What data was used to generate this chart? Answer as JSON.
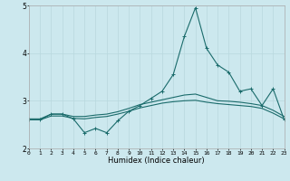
{
  "xlabel": "Humidex (Indice chaleur)",
  "xlim": [
    0,
    23
  ],
  "ylim": [
    2,
    5
  ],
  "yticks": [
    2,
    3,
    4,
    5
  ],
  "xticks": [
    0,
    1,
    2,
    3,
    4,
    5,
    6,
    7,
    8,
    9,
    10,
    11,
    12,
    13,
    14,
    15,
    16,
    17,
    18,
    19,
    20,
    21,
    22,
    23
  ],
  "bg_color": "#cce8ee",
  "line_color": "#1a6b6b",
  "grid_color": "#b8d8de",
  "line1_x": [
    0,
    1,
    2,
    3,
    4,
    5,
    6,
    7,
    8,
    9,
    10,
    11,
    12,
    13,
    14,
    15,
    16,
    17,
    18,
    19,
    20,
    21,
    22,
    23
  ],
  "line1_y": [
    2.6,
    2.6,
    2.72,
    2.72,
    2.62,
    2.33,
    2.42,
    2.33,
    2.58,
    2.78,
    2.9,
    3.05,
    3.2,
    3.55,
    4.35,
    4.95,
    4.1,
    3.75,
    3.6,
    3.2,
    3.25,
    2.9,
    3.25,
    2.6
  ],
  "line2_x": [
    0,
    1,
    2,
    3,
    4,
    5,
    6,
    7,
    8,
    9,
    10,
    11,
    12,
    13,
    14,
    15,
    16,
    17,
    18,
    19,
    20,
    21,
    22,
    23
  ],
  "line2_y": [
    2.62,
    2.62,
    2.72,
    2.72,
    2.67,
    2.67,
    2.7,
    2.72,
    2.77,
    2.84,
    2.92,
    2.97,
    3.02,
    3.07,
    3.12,
    3.14,
    3.07,
    3.0,
    2.99,
    2.97,
    2.94,
    2.9,
    2.8,
    2.67
  ],
  "line3_x": [
    0,
    1,
    2,
    3,
    4,
    5,
    6,
    7,
    8,
    9,
    10,
    11,
    12,
    13,
    14,
    15,
    16,
    17,
    18,
    19,
    20,
    21,
    22,
    23
  ],
  "line3_y": [
    2.6,
    2.6,
    2.68,
    2.68,
    2.63,
    2.62,
    2.65,
    2.67,
    2.72,
    2.78,
    2.85,
    2.9,
    2.95,
    2.98,
    3.0,
    3.01,
    2.97,
    2.94,
    2.92,
    2.9,
    2.88,
    2.84,
    2.74,
    2.62
  ],
  "xlabel_fontsize": 6,
  "tick_fontsize": 4.5,
  "ytick_fontsize": 5.5
}
